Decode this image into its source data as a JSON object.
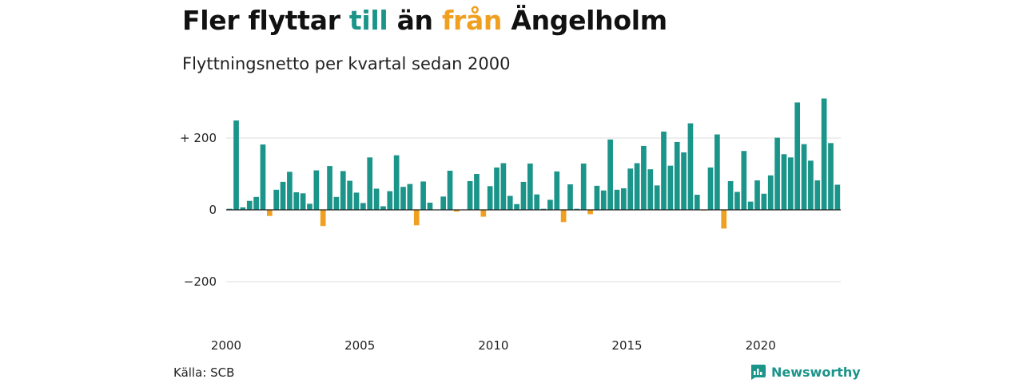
{
  "title": {
    "part1": "Fler flyttar ",
    "part2": "till",
    "part3": " än ",
    "part4": "från",
    "part5": " Ängelholm"
  },
  "subtitle": "Flyttningsnetto per kvartal sedan 2000",
  "source": "Källa: SCB",
  "brand": "Newsworthy",
  "colors": {
    "positive": "#1b9489",
    "negative": "#f0a020",
    "grid": "#dddddd",
    "zero": "#222222"
  },
  "chart_data": {
    "type": "bar",
    "ylim": [
      -300,
      300
    ],
    "yticks": [
      {
        "value": 200,
        "label": "+ 200"
      },
      {
        "value": 0,
        "label": "0"
      },
      {
        "value": -200,
        "label": "−200"
      }
    ],
    "xticks": [
      {
        "year": 2000,
        "label": "2000"
      },
      {
        "year": 2005,
        "label": "2005"
      },
      {
        "year": 2010,
        "label": "2010"
      },
      {
        "year": 2015,
        "label": "2015"
      },
      {
        "year": 2020,
        "label": "2020"
      }
    ],
    "start_year": 2000,
    "values": [
      3,
      249,
      7,
      25,
      36,
      182,
      -17,
      56,
      78,
      106,
      49,
      46,
      17,
      110,
      -45,
      122,
      36,
      108,
      81,
      48,
      19,
      146,
      59,
      10,
      52,
      152,
      64,
      72,
      -43,
      79,
      20,
      0,
      37,
      109,
      -5,
      0,
      80,
      100,
      -19,
      66,
      118,
      130,
      39,
      16,
      78,
      129,
      43,
      3,
      28,
      107,
      -34,
      71,
      3,
      129,
      -12,
      67,
      54,
      196,
      56,
      60,
      115,
      130,
      178,
      113,
      68,
      218,
      123,
      189,
      160,
      241,
      42,
      -2,
      118,
      210,
      -52,
      80,
      50,
      164,
      23,
      82,
      45,
      96,
      201,
      155,
      146,
      299,
      183,
      137,
      82,
      310,
      186,
      70
    ]
  }
}
